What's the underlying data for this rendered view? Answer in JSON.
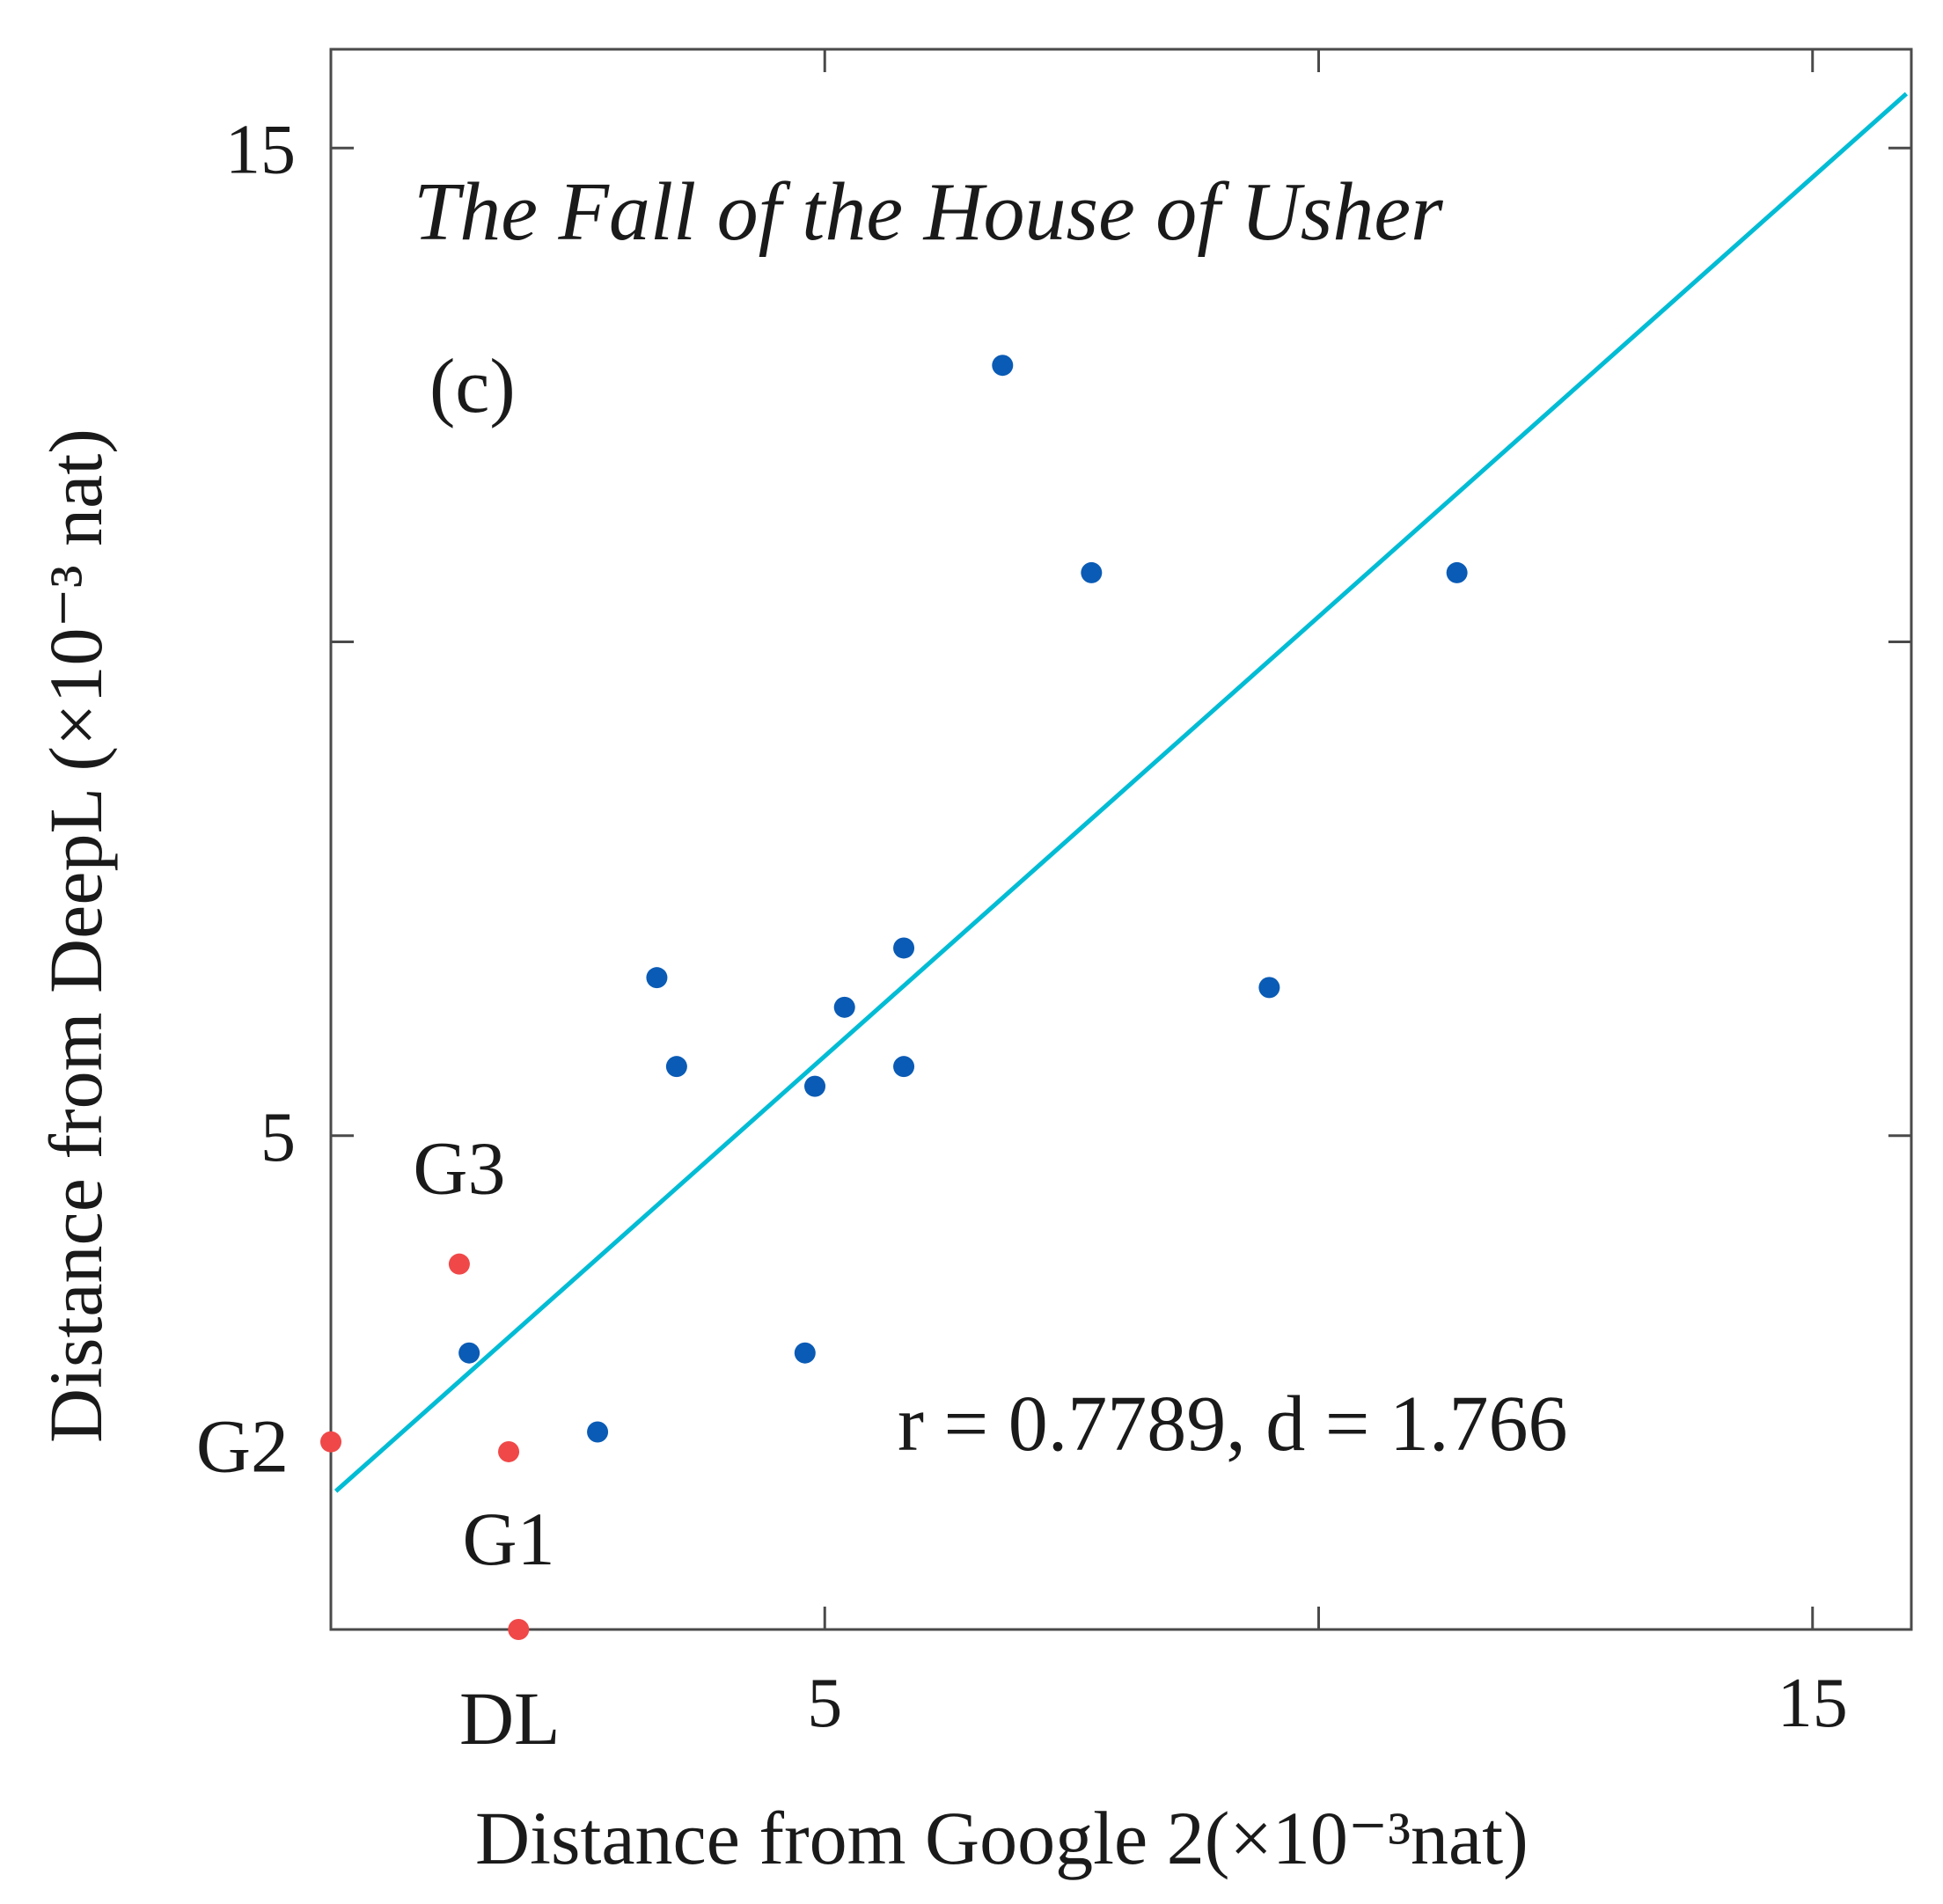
{
  "chart_data": {
    "type": "scatter",
    "title": "The Fall of the House of Usher",
    "panel_label": "(c)",
    "xlabel": "Distance from Google 2(×10⁻³nat)",
    "ylabel": "Distance from DeepL (×10⁻³ nat)",
    "xlim": [
      0,
      16
    ],
    "ylim": [
      0,
      16
    ],
    "x_tick_labels": [
      {
        "value": 5,
        "label": "5"
      },
      {
        "value": 15,
        "label": "15"
      }
    ],
    "y_tick_labels": [
      {
        "value": 5,
        "label": "5"
      },
      {
        "value": 15,
        "label": "15"
      }
    ],
    "x_ticks": [
      5,
      10,
      15
    ],
    "y_ticks": [
      5,
      10,
      15
    ],
    "grid": false,
    "stats_text": "r = 0.7789, d = 1.766",
    "regression_line": {
      "x": [
        0.05,
        15.95
      ],
      "y": [
        1.4,
        15.55
      ],
      "color": "#00bcd4"
    },
    "series": [
      {
        "color": "#0a5bb5",
        "points": [
          {
            "x": 6.8,
            "y": 12.8
          },
          {
            "x": 7.7,
            "y": 10.7
          },
          {
            "x": 11.4,
            "y": 10.7
          },
          {
            "x": 3.3,
            "y": 6.6
          },
          {
            "x": 3.5,
            "y": 5.7
          },
          {
            "x": 5.2,
            "y": 6.3
          },
          {
            "x": 5.8,
            "y": 6.9
          },
          {
            "x": 4.9,
            "y": 5.5
          },
          {
            "x": 5.8,
            "y": 5.7
          },
          {
            "x": 9.5,
            "y": 6.5
          },
          {
            "x": 1.4,
            "y": 2.8
          },
          {
            "x": 4.8,
            "y": 2.8
          },
          {
            "x": 2.7,
            "y": 2.0
          }
        ]
      },
      {
        "color": "#f04848",
        "points": [
          {
            "x": 1.3,
            "y": 3.7,
            "label": "G3"
          },
          {
            "x": 0.0,
            "y": 1.9,
            "label": "G2"
          },
          {
            "x": 1.8,
            "y": 1.8,
            "label": "G1"
          },
          {
            "x": 1.9,
            "y": 0.0,
            "label": "DL"
          }
        ]
      }
    ]
  }
}
